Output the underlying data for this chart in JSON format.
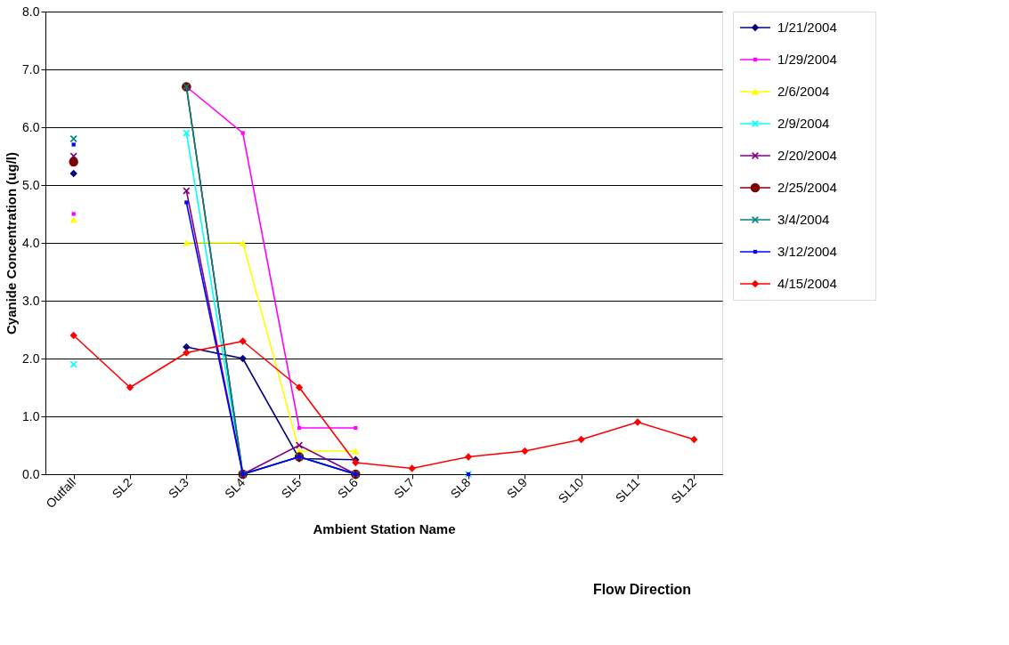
{
  "chart_data": {
    "type": "line",
    "xlabel": "Ambient Station Name",
    "ylabel": "Cyanide Concentration (ug/l)",
    "categories": [
      "Outfall",
      "SL2",
      "SL3",
      "SL4",
      "SL5",
      "SL6",
      "SL7",
      "SL8",
      "SL9",
      "SL10",
      "SL11",
      "SL12"
    ],
    "ylim": [
      0,
      8
    ],
    "yticks": [
      {
        "value": 0,
        "label": "0.0"
      },
      {
        "value": 1,
        "label": "1.0"
      },
      {
        "value": 2,
        "label": "2.0"
      },
      {
        "value": 3,
        "label": "3.0"
      },
      {
        "value": 4,
        "label": "4.0"
      },
      {
        "value": 5,
        "label": "5.0"
      },
      {
        "value": 6,
        "label": "6.0"
      },
      {
        "value": 7,
        "label": "7.0"
      },
      {
        "value": 8,
        "label": "8.0"
      }
    ],
    "grid": "y",
    "legend": "right",
    "annotations": [
      "Flow Direction"
    ],
    "series": [
      {
        "name": "1/21/2004",
        "color": "#000080",
        "marker": "diamond",
        "values": [
          5.2,
          null,
          2.2,
          2.0,
          0.27,
          0.25,
          null,
          null,
          null,
          null,
          null,
          null
        ]
      },
      {
        "name": "1/29/2004",
        "color": "#ff00ff",
        "marker": "square",
        "values": [
          4.5,
          null,
          6.7,
          5.9,
          0.8,
          0.8,
          null,
          null,
          null,
          null,
          null,
          null
        ]
      },
      {
        "name": "2/6/2004",
        "color": "#ffff00",
        "marker": "triangle",
        "values": [
          4.4,
          null,
          4.0,
          4.0,
          0.4,
          0.4,
          null,
          null,
          null,
          null,
          null,
          null
        ]
      },
      {
        "name": "2/9/2004",
        "color": "#00ffff",
        "marker": "cross",
        "values": [
          1.9,
          null,
          5.9,
          0.0,
          0.3,
          0.0,
          null,
          0.0,
          null,
          null,
          null,
          null
        ]
      },
      {
        "name": "2/20/2004",
        "color": "#800080",
        "marker": "cross",
        "values": [
          5.5,
          null,
          4.9,
          0.0,
          0.5,
          0.0,
          null,
          null,
          null,
          null,
          null,
          null
        ]
      },
      {
        "name": "2/25/2004",
        "color": "#800000",
        "marker": "circle",
        "values": [
          5.4,
          null,
          6.7,
          0.0,
          0.3,
          0.0,
          null,
          null,
          null,
          null,
          null,
          null
        ]
      },
      {
        "name": "3/4/2004",
        "color": "#008080",
        "marker": "cross",
        "values": [
          5.8,
          null,
          6.7,
          0.0,
          0.3,
          0.0,
          null,
          null,
          null,
          null,
          null,
          null
        ]
      },
      {
        "name": "3/12/2004",
        "color": "#0000ff",
        "marker": "square",
        "values": [
          5.7,
          null,
          4.7,
          0.0,
          0.3,
          0.0,
          null,
          0.0,
          null,
          null,
          null,
          null
        ]
      },
      {
        "name": "4/15/2004",
        "color": "#ff0000",
        "marker": "diamond",
        "values": [
          2.4,
          1.5,
          2.1,
          2.3,
          1.5,
          0.2,
          0.1,
          0.3,
          0.4,
          0.6,
          0.9,
          0.6
        ]
      }
    ]
  }
}
